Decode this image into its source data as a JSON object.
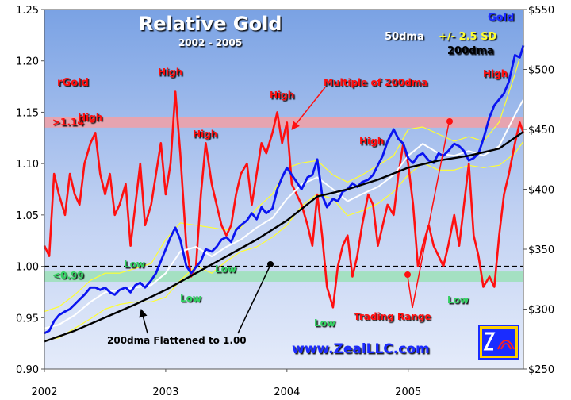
{
  "chart_data": {
    "type": "line",
    "title": "Relative Gold",
    "subtitle": "2002 - 2005",
    "xlabel": "",
    "ylabel_left": "",
    "ylabel_right": "",
    "x_ticks": [
      "2002",
      "2003",
      "2004",
      "2005"
    ],
    "x_range": [
      2002.0,
      2005.95
    ],
    "y_left": {
      "range": [
        0.9,
        1.25
      ],
      "ticks": [
        "0.90",
        "0.95",
        "1.00",
        "1.05",
        "1.10",
        "1.15",
        "1.20",
        "1.25"
      ]
    },
    "y_right": {
      "range": [
        250,
        550
      ],
      "ticks": [
        "$250",
        "$300",
        "$350",
        "$400",
        "$450",
        "$500",
        "$550"
      ]
    },
    "grid": false,
    "bands": [
      {
        "y_range": [
          1.135,
          1.145
        ],
        "axis": "left",
        "color": "#f2a0a6"
      },
      {
        "y_range": [
          0.985,
          0.995
        ],
        "axis": "left",
        "color": "#9ce0b8"
      }
    ],
    "reference_lines": [
      {
        "y": 1.0,
        "axis": "left",
        "style": "dashed"
      }
    ],
    "series": [
      {
        "key": "rgold",
        "axis": "left",
        "color": "#ff1010",
        "x": [
          2002.0,
          2002.04,
          2002.08,
          2002.12,
          2002.17,
          2002.21,
          2002.25,
          2002.29,
          2002.33,
          2002.38,
          2002.42,
          2002.46,
          2002.5,
          2002.54,
          2002.58,
          2002.62,
          2002.67,
          2002.71,
          2002.75,
          2002.79,
          2002.83,
          2002.88,
          2002.92,
          2002.96,
          2003.0,
          2003.04,
          2003.08,
          2003.12,
          2003.17,
          2003.21,
          2003.25,
          2003.29,
          2003.33,
          2003.38,
          2003.42,
          2003.46,
          2003.5,
          2003.54,
          2003.58,
          2003.62,
          2003.67,
          2003.71,
          2003.75,
          2003.79,
          2003.83,
          2003.88,
          2003.92,
          2003.96,
          2004.0,
          2004.04,
          2004.08,
          2004.12,
          2004.17,
          2004.21,
          2004.25,
          2004.29,
          2004.33,
          2004.38,
          2004.42,
          2004.46,
          2004.5,
          2004.54,
          2004.58,
          2004.62,
          2004.67,
          2004.71,
          2004.75,
          2004.79,
          2004.83,
          2004.88,
          2004.92,
          2004.96,
          2005.0,
          2005.04,
          2005.08,
          2005.12,
          2005.17,
          2005.21,
          2005.25,
          2005.29,
          2005.33,
          2005.38,
          2005.42,
          2005.46,
          2005.5,
          2005.54,
          2005.58,
          2005.62,
          2005.67,
          2005.71,
          2005.75,
          2005.79,
          2005.83,
          2005.88,
          2005.92,
          2005.95
        ],
        "y": [
          1.02,
          1.01,
          1.09,
          1.07,
          1.05,
          1.09,
          1.07,
          1.06,
          1.1,
          1.12,
          1.13,
          1.09,
          1.07,
          1.09,
          1.05,
          1.06,
          1.08,
          1.02,
          1.06,
          1.1,
          1.04,
          1.06,
          1.09,
          1.12,
          1.07,
          1.1,
          1.17,
          1.11,
          1.02,
          0.99,
          1.0,
          1.07,
          1.12,
          1.08,
          1.06,
          1.04,
          1.03,
          1.04,
          1.07,
          1.09,
          1.1,
          1.06,
          1.09,
          1.12,
          1.11,
          1.13,
          1.15,
          1.12,
          1.14,
          1.08,
          1.07,
          1.06,
          1.04,
          1.02,
          1.07,
          1.03,
          0.98,
          0.96,
          1.0,
          1.02,
          1.03,
          0.99,
          1.01,
          1.04,
          1.07,
          1.06,
          1.02,
          1.04,
          1.06,
          1.05,
          1.09,
          1.12,
          1.1,
          1.06,
          1.0,
          1.02,
          1.04,
          1.02,
          1.01,
          1.0,
          1.02,
          1.05,
          1.02,
          1.06,
          1.1,
          1.03,
          1.01,
          0.98,
          0.99,
          0.98,
          1.03,
          1.07,
          1.09,
          1.12,
          1.14,
          1.13
        ]
      },
      {
        "key": "gold",
        "axis": "right",
        "color": "#0a14f0",
        "x": [
          2002.0,
          2002.04,
          2002.08,
          2002.12,
          2002.17,
          2002.21,
          2002.25,
          2002.29,
          2002.33,
          2002.38,
          2002.42,
          2002.46,
          2002.5,
          2002.54,
          2002.58,
          2002.62,
          2002.67,
          2002.71,
          2002.75,
          2002.79,
          2002.83,
          2002.88,
          2002.92,
          2002.96,
          2003.0,
          2003.04,
          2003.08,
          2003.12,
          2003.17,
          2003.21,
          2003.25,
          2003.29,
          2003.33,
          2003.38,
          2003.42,
          2003.46,
          2003.5,
          2003.54,
          2003.58,
          2003.62,
          2003.67,
          2003.71,
          2003.75,
          2003.79,
          2003.83,
          2003.88,
          2003.92,
          2003.96,
          2004.0,
          2004.04,
          2004.08,
          2004.12,
          2004.17,
          2004.21,
          2004.25,
          2004.29,
          2004.33,
          2004.38,
          2004.42,
          2004.46,
          2004.5,
          2004.54,
          2004.58,
          2004.62,
          2004.67,
          2004.71,
          2004.75,
          2004.79,
          2004.83,
          2004.88,
          2004.92,
          2004.96,
          2005.0,
          2005.04,
          2005.08,
          2005.12,
          2005.17,
          2005.21,
          2005.25,
          2005.29,
          2005.33,
          2005.38,
          2005.42,
          2005.46,
          2005.5,
          2005.54,
          2005.58,
          2005.62,
          2005.67,
          2005.71,
          2005.75,
          2005.79,
          2005.83,
          2005.88,
          2005.92,
          2005.95
        ],
        "y": [
          280,
          282,
          290,
          295,
          298,
          300,
          304,
          308,
          312,
          318,
          318,
          316,
          318,
          314,
          312,
          316,
          318,
          314,
          320,
          322,
          318,
          324,
          330,
          340,
          350,
          360,
          368,
          358,
          336,
          330,
          335,
          340,
          350,
          348,
          352,
          358,
          360,
          356,
          366,
          370,
          374,
          380,
          375,
          385,
          380,
          384,
          400,
          410,
          418,
          412,
          406,
          400,
          410,
          412,
          425,
          395,
          385,
          392,
          390,
          398,
          400,
          405,
          402,
          406,
          408,
          412,
          420,
          428,
          440,
          450,
          442,
          438,
          426,
          422,
          428,
          430,
          424,
          422,
          430,
          428,
          432,
          438,
          436,
          432,
          424,
          426,
          430,
          442,
          460,
          470,
          475,
          480,
          490,
          512,
          510,
          520
        ]
      },
      {
        "key": "dma50",
        "axis": "right",
        "color": "#ffffff",
        "x": [
          2002.0,
          2002.12,
          2002.25,
          2002.38,
          2002.5,
          2002.62,
          2002.75,
          2002.88,
          2003.0,
          2003.12,
          2003.25,
          2003.38,
          2003.5,
          2003.62,
          2003.75,
          2003.88,
          2004.0,
          2004.12,
          2004.25,
          2004.38,
          2004.5,
          2004.62,
          2004.75,
          2004.88,
          2005.0,
          2005.12,
          2005.25,
          2005.38,
          2005.5,
          2005.62,
          2005.75,
          2005.88,
          2005.95
        ],
        "y": [
          284,
          287,
          295,
          306,
          314,
          316,
          318,
          320,
          330,
          348,
          352,
          344,
          352,
          358,
          368,
          376,
          392,
          404,
          410,
          400,
          390,
          396,
          402,
          412,
          428,
          438,
          430,
          428,
          432,
          428,
          436,
          462,
          475
        ]
      },
      {
        "key": "band_upper",
        "axis": "right",
        "color": "#ffff33",
        "x": [
          2002.0,
          2002.12,
          2002.25,
          2002.38,
          2002.5,
          2002.62,
          2002.75,
          2002.88,
          2003.0,
          2003.12,
          2003.25,
          2003.38,
          2003.5,
          2003.62,
          2003.75,
          2003.88,
          2004.0,
          2004.12,
          2004.25,
          2004.38,
          2004.5,
          2004.62,
          2004.75,
          2004.88,
          2005.0,
          2005.12,
          2005.25,
          2005.38,
          2005.5,
          2005.62,
          2005.75,
          2005.88,
          2005.95
        ],
        "y": [
          298,
          302,
          312,
          324,
          330,
          330,
          334,
          338,
          358,
          372,
          370,
          368,
          366,
          368,
          384,
          396,
          418,
          422,
          424,
          412,
          406,
          412,
          420,
          428,
          450,
          452,
          446,
          440,
          444,
          440,
          456,
          496,
          520
        ]
      },
      {
        "key": "band_lower",
        "axis": "right",
        "color": "#ffff33",
        "x": [
          2002.0,
          2002.12,
          2002.25,
          2002.38,
          2002.5,
          2002.62,
          2002.75,
          2002.88,
          2003.0,
          2003.12,
          2003.25,
          2003.38,
          2003.5,
          2003.62,
          2003.75,
          2003.88,
          2004.0,
          2004.12,
          2004.25,
          2004.38,
          2004.5,
          2004.62,
          2004.75,
          2004.88,
          2005.0,
          2005.12,
          2005.25,
          2005.38,
          2005.5,
          2005.62,
          2005.75,
          2005.88,
          2005.95
        ],
        "y": [
          274,
          276,
          284,
          292,
          300,
          304,
          306,
          306,
          310,
          324,
          336,
          330,
          340,
          348,
          352,
          360,
          370,
          386,
          396,
          392,
          378,
          382,
          388,
          398,
          412,
          422,
          416,
          416,
          420,
          418,
          420,
          430,
          440
        ]
      },
      {
        "key": "dma200",
        "axis": "right",
        "color": "#000000",
        "x": [
          2002.0,
          2002.25,
          2002.5,
          2002.75,
          2003.0,
          2003.25,
          2003.5,
          2003.75,
          2004.0,
          2004.25,
          2004.5,
          2004.75,
          2005.0,
          2005.25,
          2005.5,
          2005.75,
          2005.95
        ],
        "y": [
          273,
          282,
          293,
          304,
          316,
          330,
          344,
          358,
          374,
          394,
          400,
          408,
          418,
          424,
          428,
          434,
          448
        ]
      }
    ],
    "legend": {
      "position": "top-right",
      "items": [
        {
          "label": "Gold",
          "color": "#0a14f0"
        },
        {
          "label": "50dma",
          "color": "#ffffff"
        },
        {
          "label": "+/- 2.5 SD",
          "color": "#ffff33"
        },
        {
          "label": "200dma",
          "color": "#000000"
        }
      ]
    },
    "annotations": [
      {
        "text": "rGold",
        "color": "#ff1010"
      },
      {
        "text": ">1.14",
        "color": "#ff1010"
      },
      {
        "text": "<0.99",
        "color": "#30d060"
      },
      {
        "text": "High",
        "color": "#ff1010"
      },
      {
        "text": "High",
        "color": "#ff1010"
      },
      {
        "text": "High",
        "color": "#ff1010"
      },
      {
        "text": "High",
        "color": "#ff1010"
      },
      {
        "text": "High",
        "color": "#ff1010"
      },
      {
        "text": "High",
        "color": "#ff1010"
      },
      {
        "text": "High",
        "color": "#ff1010"
      },
      {
        "text": "Low",
        "color": "#30d060"
      },
      {
        "text": "Low",
        "color": "#30d060"
      },
      {
        "text": "Low",
        "color": "#30d060"
      },
      {
        "text": "Low",
        "color": "#30d060"
      },
      {
        "text": "Low",
        "color": "#30d060"
      },
      {
        "text": "Multiple of 200dma",
        "color": "#ff1010"
      },
      {
        "text": "Trading Range",
        "color": "#ff1010"
      },
      {
        "text": "200dma Flattened to 1.00",
        "color": "#000000"
      }
    ],
    "watermark": "www.ZealLLC.com"
  }
}
